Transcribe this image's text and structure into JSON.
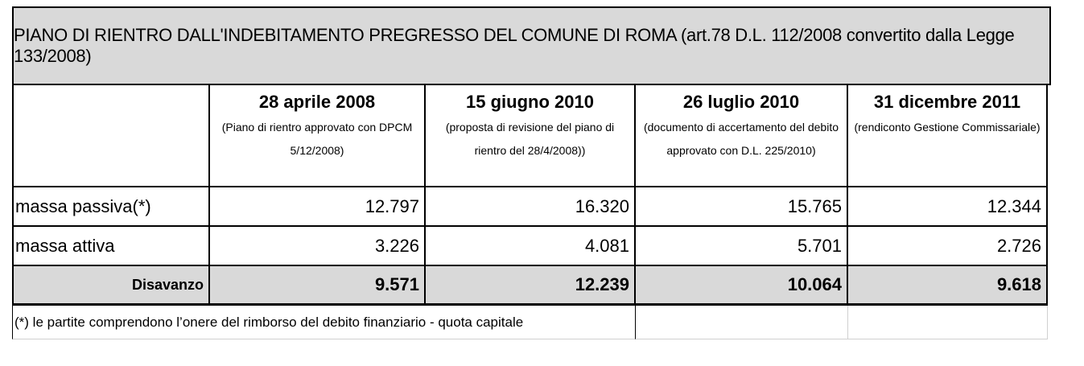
{
  "title": "PIANO DI RIENTRO DALL'INDEBITAMENTO PREGRESSO DEL COMUNE DI ROMA  (art.78 D.L. 112/2008 convertito dalla Legge 133/2008)",
  "columns": [
    {
      "date": "28 aprile 2008",
      "note": "(Piano di rientro approvato con DPCM 5/12/2008)"
    },
    {
      "date": "15 giugno 2010",
      "note": "(proposta di revisione del piano di rientro del 28/4/2008))"
    },
    {
      "date": "26 luglio 2010",
      "note": "(documento di accertamento del debito approvato con D.L. 225/2010)"
    },
    {
      "date": "31 dicembre 2011",
      "note": "(rendiconto Gestione Commissariale)"
    }
  ],
  "rows": [
    {
      "label": "massa passiva(*)",
      "values": [
        "12.797",
        "16.320",
        "15.765",
        "12.344"
      ]
    },
    {
      "label": "massa attiva",
      "values": [
        "3.226",
        "4.081",
        "5.701",
        "2.726"
      ]
    }
  ],
  "total": {
    "label": "Disavanzo",
    "values": [
      "9.571",
      "12.239",
      "10.064",
      "9.618"
    ]
  },
  "footnote": "(*) le partite comprendono l’onere del rimborso del debito finanziario - quota capitale"
}
